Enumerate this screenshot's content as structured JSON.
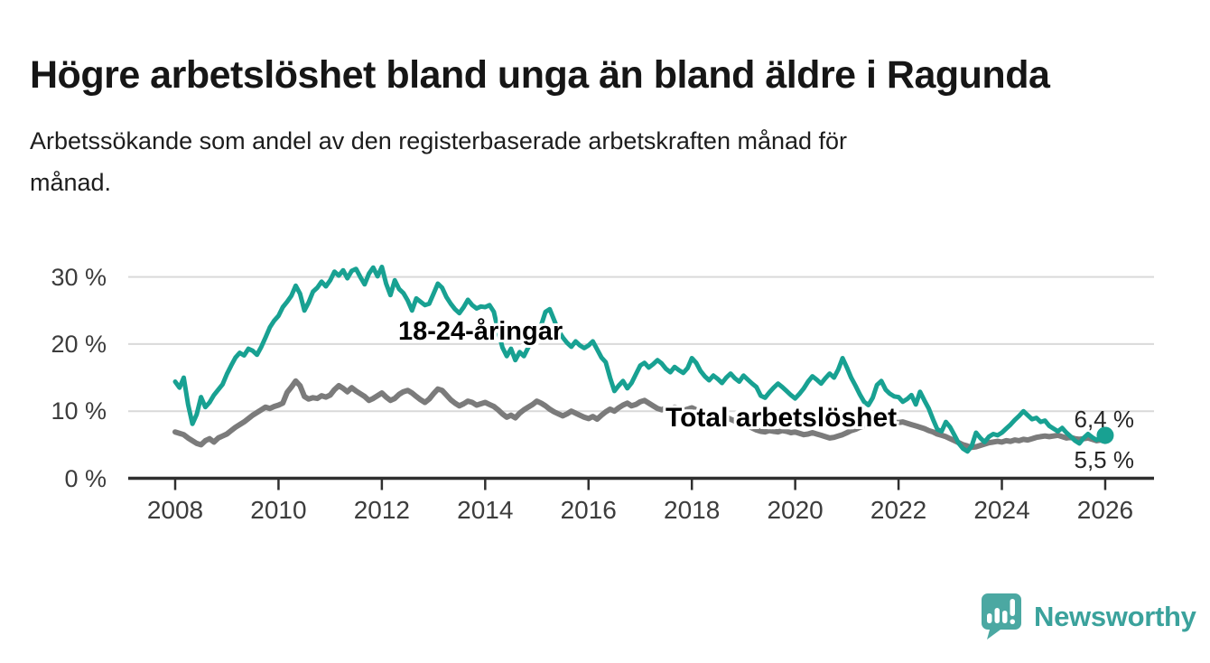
{
  "header": {
    "title": "Högre arbetslöshet bland unga än bland äldre i Ragunda",
    "subtitle_lines": [
      "Arbetssökande som andel av den registerbaserade arbetskraften månad för",
      "månad."
    ]
  },
  "chart_data": {
    "type": "line",
    "x_unit": "month",
    "x_start": "2008-01",
    "x_end": "2026-01",
    "ylim": [
      0,
      32
    ],
    "grid": "horizontal",
    "style": {
      "axis_color": "#2f2f2f",
      "grid_color": "#d9d9d9"
    },
    "y_ticks": [
      {
        "value": 0,
        "label": "0 %"
      },
      {
        "value": 10,
        "label": "10 %"
      },
      {
        "value": 20,
        "label": "20 %"
      },
      {
        "value": 30,
        "label": "30 %"
      }
    ],
    "x_ticks": [
      {
        "year": 2008,
        "label": "2008"
      },
      {
        "year": 2010,
        "label": "2010"
      },
      {
        "year": 2012,
        "label": "2012"
      },
      {
        "year": 2014,
        "label": "2014"
      },
      {
        "year": 2016,
        "label": "2016"
      },
      {
        "year": 2018,
        "label": "2018"
      },
      {
        "year": 2020,
        "label": "2020"
      },
      {
        "year": 2022,
        "label": "2022"
      },
      {
        "year": 2024,
        "label": "2024"
      },
      {
        "year": 2026,
        "label": "2026"
      }
    ],
    "series": [
      {
        "name": "18-24-åringar",
        "color": "#18A192",
        "end_value_label": "6,4 %",
        "values": [
          14.4,
          13.5,
          15.0,
          11.0,
          8.1,
          9.5,
          12.1,
          10.6,
          11.3,
          12.4,
          13.2,
          14.0,
          15.5,
          16.8,
          18.0,
          18.7,
          18.3,
          19.3,
          19.0,
          18.4,
          19.6,
          21.0,
          22.5,
          23.5,
          24.2,
          25.5,
          26.3,
          27.2,
          28.7,
          27.5,
          25.0,
          26.2,
          27.8,
          28.4,
          29.3,
          28.6,
          29.5,
          30.8,
          30.2,
          31.0,
          29.8,
          30.9,
          31.2,
          30.0,
          28.9,
          30.5,
          31.4,
          30.1,
          31.5,
          29.0,
          27.3,
          29.5,
          28.2,
          27.6,
          26.5,
          25.0,
          26.8,
          26.3,
          25.8,
          26.0,
          27.5,
          29.0,
          28.4,
          27.0,
          26.0,
          25.2,
          24.6,
          25.5,
          26.6,
          25.8,
          25.3,
          25.6,
          25.5,
          25.8,
          24.8,
          22.0,
          19.5,
          18.2,
          19.3,
          17.6,
          18.8,
          18.2,
          19.5,
          20.6,
          21.5,
          22.8,
          24.8,
          25.2,
          23.6,
          22.0,
          21.0,
          20.2,
          19.6,
          20.4,
          19.8,
          19.4,
          19.8,
          20.4,
          19.2,
          18.0,
          17.3,
          15.0,
          13.0,
          13.8,
          14.5,
          13.4,
          14.2,
          15.5,
          16.8,
          17.2,
          16.5,
          17.0,
          17.6,
          17.1,
          16.3,
          15.8,
          16.6,
          16.1,
          15.7,
          16.4,
          17.9,
          17.2,
          16.0,
          15.2,
          14.6,
          15.3,
          14.8,
          14.2,
          15.0,
          15.6,
          14.9,
          14.4,
          15.3,
          14.7,
          14.1,
          13.6,
          12.3,
          12.0,
          12.8,
          13.5,
          14.1,
          13.6,
          13.0,
          12.4,
          11.9,
          12.6,
          13.4,
          14.4,
          15.2,
          14.7,
          14.1,
          14.9,
          15.6,
          15.0,
          16.2,
          17.9,
          16.5,
          15.0,
          13.8,
          12.5,
          11.4,
          10.9,
          12.0,
          13.9,
          14.5,
          13.2,
          12.6,
          12.2,
          12.1,
          11.4,
          11.8,
          12.4,
          11.0,
          12.9,
          11.6,
          10.4,
          8.8,
          7.3,
          7.0,
          8.4,
          7.6,
          6.4,
          5.2,
          4.4,
          4.0,
          4.8,
          6.8,
          6.0,
          5.4,
          6.2,
          6.6,
          6.4,
          6.8,
          7.4,
          8.0,
          8.7,
          9.3,
          10.0,
          9.4,
          8.8,
          9.0,
          8.4,
          8.6,
          7.8,
          7.4,
          7.0,
          7.5,
          6.8,
          6.2,
          5.6,
          5.2,
          6.0,
          6.6,
          6.1,
          5.7,
          6.0,
          6.4
        ]
      },
      {
        "name": "Total arbetslöshet",
        "color": "#7B7B7B",
        "end_value_label": "5,5 %",
        "values": [
          6.9,
          6.7,
          6.5,
          6.0,
          5.6,
          5.2,
          5.0,
          5.6,
          5.9,
          5.4,
          6.0,
          6.3,
          6.6,
          7.1,
          7.6,
          8.0,
          8.4,
          8.9,
          9.4,
          9.8,
          10.2,
          10.6,
          10.4,
          10.7,
          10.9,
          11.2,
          12.8,
          13.6,
          14.5,
          13.8,
          12.2,
          11.8,
          12.0,
          11.9,
          12.3,
          12.1,
          12.4,
          13.2,
          13.8,
          13.4,
          12.9,
          13.5,
          13.0,
          12.6,
          12.2,
          11.6,
          11.9,
          12.3,
          12.7,
          12.1,
          11.6,
          11.9,
          12.5,
          12.9,
          13.1,
          12.7,
          12.2,
          11.7,
          11.3,
          11.8,
          12.6,
          13.3,
          13.1,
          12.4,
          11.7,
          11.2,
          10.8,
          11.1,
          11.5,
          11.3,
          10.9,
          11.1,
          11.3,
          11.0,
          10.7,
          10.2,
          9.6,
          9.1,
          9.4,
          9.0,
          9.7,
          10.2,
          10.6,
          11.0,
          11.5,
          11.2,
          10.8,
          10.3,
          9.9,
          9.6,
          9.3,
          9.6,
          10.0,
          9.7,
          9.4,
          9.1,
          8.9,
          9.2,
          8.8,
          9.4,
          9.9,
          10.3,
          10.0,
          10.5,
          10.9,
          11.2,
          10.8,
          11.0,
          11.4,
          11.6,
          11.2,
          10.8,
          10.4,
          10.2,
          10.5,
          10.3,
          10.6,
          10.4,
          10.1,
          10.3,
          10.5,
          10.2,
          9.8,
          9.5,
          9.2,
          8.9,
          8.7,
          8.9,
          9.1,
          8.8,
          8.5,
          8.3,
          8.1,
          7.8,
          7.5,
          7.2,
          7.0,
          6.9,
          7.1,
          7.0,
          6.9,
          7.1,
          7.0,
          6.8,
          6.9,
          6.7,
          6.5,
          6.6,
          6.8,
          6.6,
          6.4,
          6.2,
          6.0,
          6.1,
          6.3,
          6.5,
          6.8,
          7.1,
          7.3,
          7.6,
          7.8,
          8.0,
          7.9,
          8.1,
          8.0,
          8.2,
          8.1,
          8.3,
          8.3,
          8.4,
          8.2,
          8.0,
          7.8,
          7.6,
          7.4,
          7.1,
          6.9,
          6.6,
          6.4,
          6.2,
          5.9,
          5.6,
          5.3,
          5.0,
          4.8,
          4.6,
          4.7,
          4.9,
          5.1,
          5.3,
          5.4,
          5.5,
          5.4,
          5.6,
          5.5,
          5.7,
          5.6,
          5.8,
          5.7,
          5.9,
          6.1,
          6.2,
          6.3,
          6.2,
          6.3,
          6.4,
          6.2,
          6.0,
          6.1,
          5.9,
          5.8,
          5.9,
          6.0,
          5.8,
          5.6,
          5.7,
          5.5
        ]
      }
    ]
  },
  "branding": {
    "logo_text": "Newsworthy",
    "logo_color": "#3BA29C",
    "logo_mark_color": "#4BA8A2"
  }
}
